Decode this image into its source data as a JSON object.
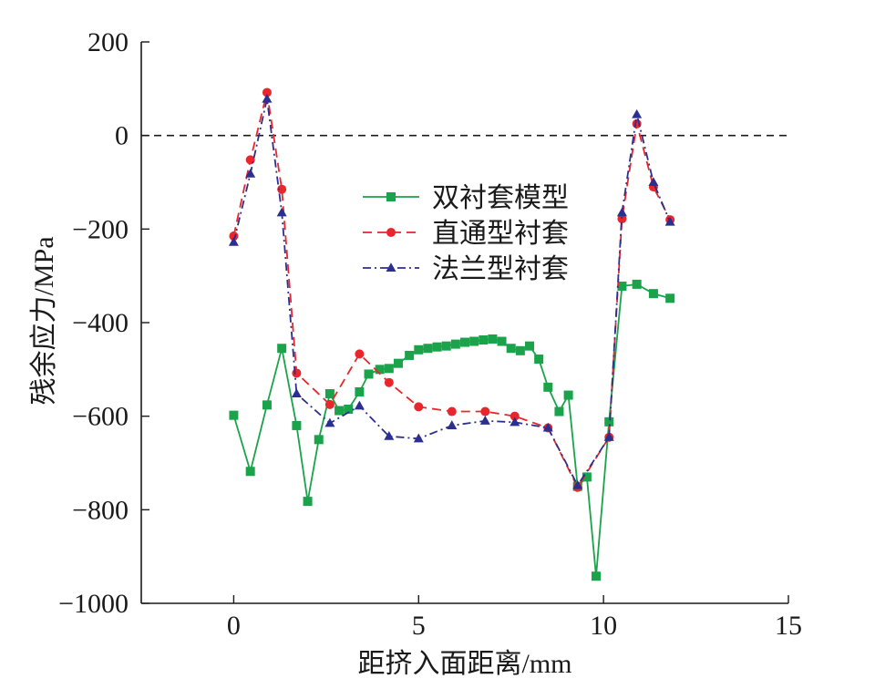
{
  "chart_data": {
    "type": "line",
    "xlabel": "距挤入面距离/mm",
    "ylabel": "残余应力/MPa",
    "xlim": [
      -2.5,
      15
    ],
    "ylim": [
      -1000,
      200
    ],
    "xticks": [
      0,
      5,
      10,
      15
    ],
    "yticks": [
      200,
      0,
      -200,
      -400,
      -600,
      -800,
      -1000
    ],
    "tick_direction": "inward",
    "grid": false,
    "legend_position": "center-upper",
    "reference_line": {
      "y": 0,
      "style": "dashed",
      "color": "#1a1a1a"
    },
    "series": [
      {
        "name": "双衬套模型",
        "color": "#1aa34a",
        "line_style": "solid",
        "marker": "square",
        "x": [
          0,
          0.45,
          0.9,
          1.3,
          1.7,
          2.0,
          2.3,
          2.6,
          2.85,
          3.1,
          3.4,
          3.65,
          3.95,
          4.2,
          4.45,
          4.75,
          5.0,
          5.25,
          5.5,
          5.75,
          6.0,
          6.25,
          6.5,
          6.75,
          7.0,
          7.25,
          7.5,
          7.75,
          8.0,
          8.25,
          8.5,
          8.8,
          9.05,
          9.3,
          9.55,
          9.8,
          10.15,
          10.5,
          10.9,
          11.35,
          11.8
        ],
        "y": [
          -598,
          -718,
          -576,
          -455,
          -620,
          -782,
          -650,
          -552,
          -588,
          -585,
          -548,
          -510,
          -500,
          -498,
          -487,
          -470,
          -458,
          -455,
          -452,
          -450,
          -446,
          -442,
          -440,
          -437,
          -435,
          -440,
          -455,
          -460,
          -450,
          -478,
          -538,
          -590,
          -555,
          -750,
          -730,
          -942,
          -612,
          -322,
          -318,
          -338,
          -348
        ]
      },
      {
        "name": "直通型衬套",
        "color": "#e8262b",
        "line_style": "dashed",
        "marker": "circle",
        "x": [
          0,
          0.45,
          0.9,
          1.3,
          1.7,
          2.6,
          3.4,
          4.2,
          5.0,
          5.9,
          6.8,
          7.6,
          8.5,
          9.3,
          10.15,
          10.5,
          10.9,
          11.35,
          11.8
        ],
        "y": [
          -215,
          -52,
          92,
          -115,
          -508,
          -575,
          -467,
          -528,
          -580,
          -590,
          -590,
          -600,
          -625,
          -752,
          -645,
          -178,
          25,
          -110,
          -180
        ]
      },
      {
        "name": "法兰型衬套",
        "color": "#2b2f8f",
        "line_style": "dash-dot",
        "marker": "triangle",
        "x": [
          0,
          0.45,
          0.9,
          1.3,
          1.7,
          2.6,
          3.4,
          4.2,
          5.0,
          5.9,
          6.8,
          7.6,
          8.5,
          9.3,
          10.15,
          10.5,
          10.9,
          11.35,
          11.8
        ],
        "y": [
          -228,
          -82,
          78,
          -165,
          -552,
          -615,
          -578,
          -643,
          -648,
          -620,
          -610,
          -613,
          -625,
          -748,
          -645,
          -165,
          45,
          -100,
          -185
        ]
      }
    ]
  }
}
